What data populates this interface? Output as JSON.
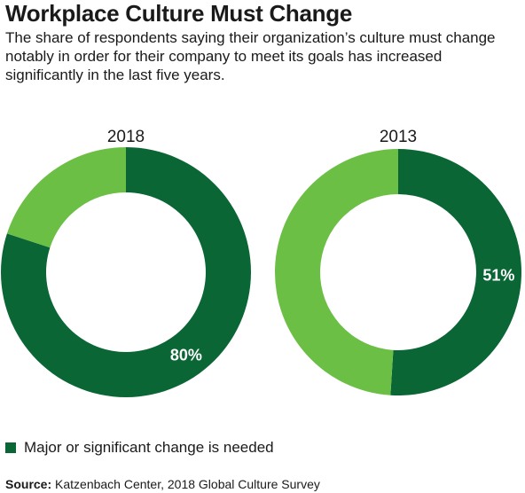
{
  "title": "Workplace Culture Must Change",
  "subtitle": "The share of respondents saying their organization’s culture must change notably in order for their company to meet its goals has increased significantly in the last five years.",
  "colors": {
    "major_change": "#0a6634",
    "other": "#6bbf45",
    "hole": "#ffffff"
  },
  "legend": {
    "label": "Major or significant change is needed"
  },
  "source": {
    "label": "Source:",
    "text": " Katzenbach Center, 2018 Global Culture Survey"
  },
  "chart_data": [
    {
      "type": "pie",
      "title": "2018",
      "series": [
        {
          "name": "Major or significant change is needed",
          "values": [
            80
          ]
        },
        {
          "values": [
            20
          ]
        }
      ],
      "data_labels": [
        "80%"
      ]
    },
    {
      "type": "pie",
      "title": "2013",
      "series": [
        {
          "name": "Major or significant change is needed",
          "values": [
            51
          ]
        },
        {
          "values": [
            49
          ]
        }
      ],
      "data_labels": [
        "51%"
      ]
    }
  ]
}
